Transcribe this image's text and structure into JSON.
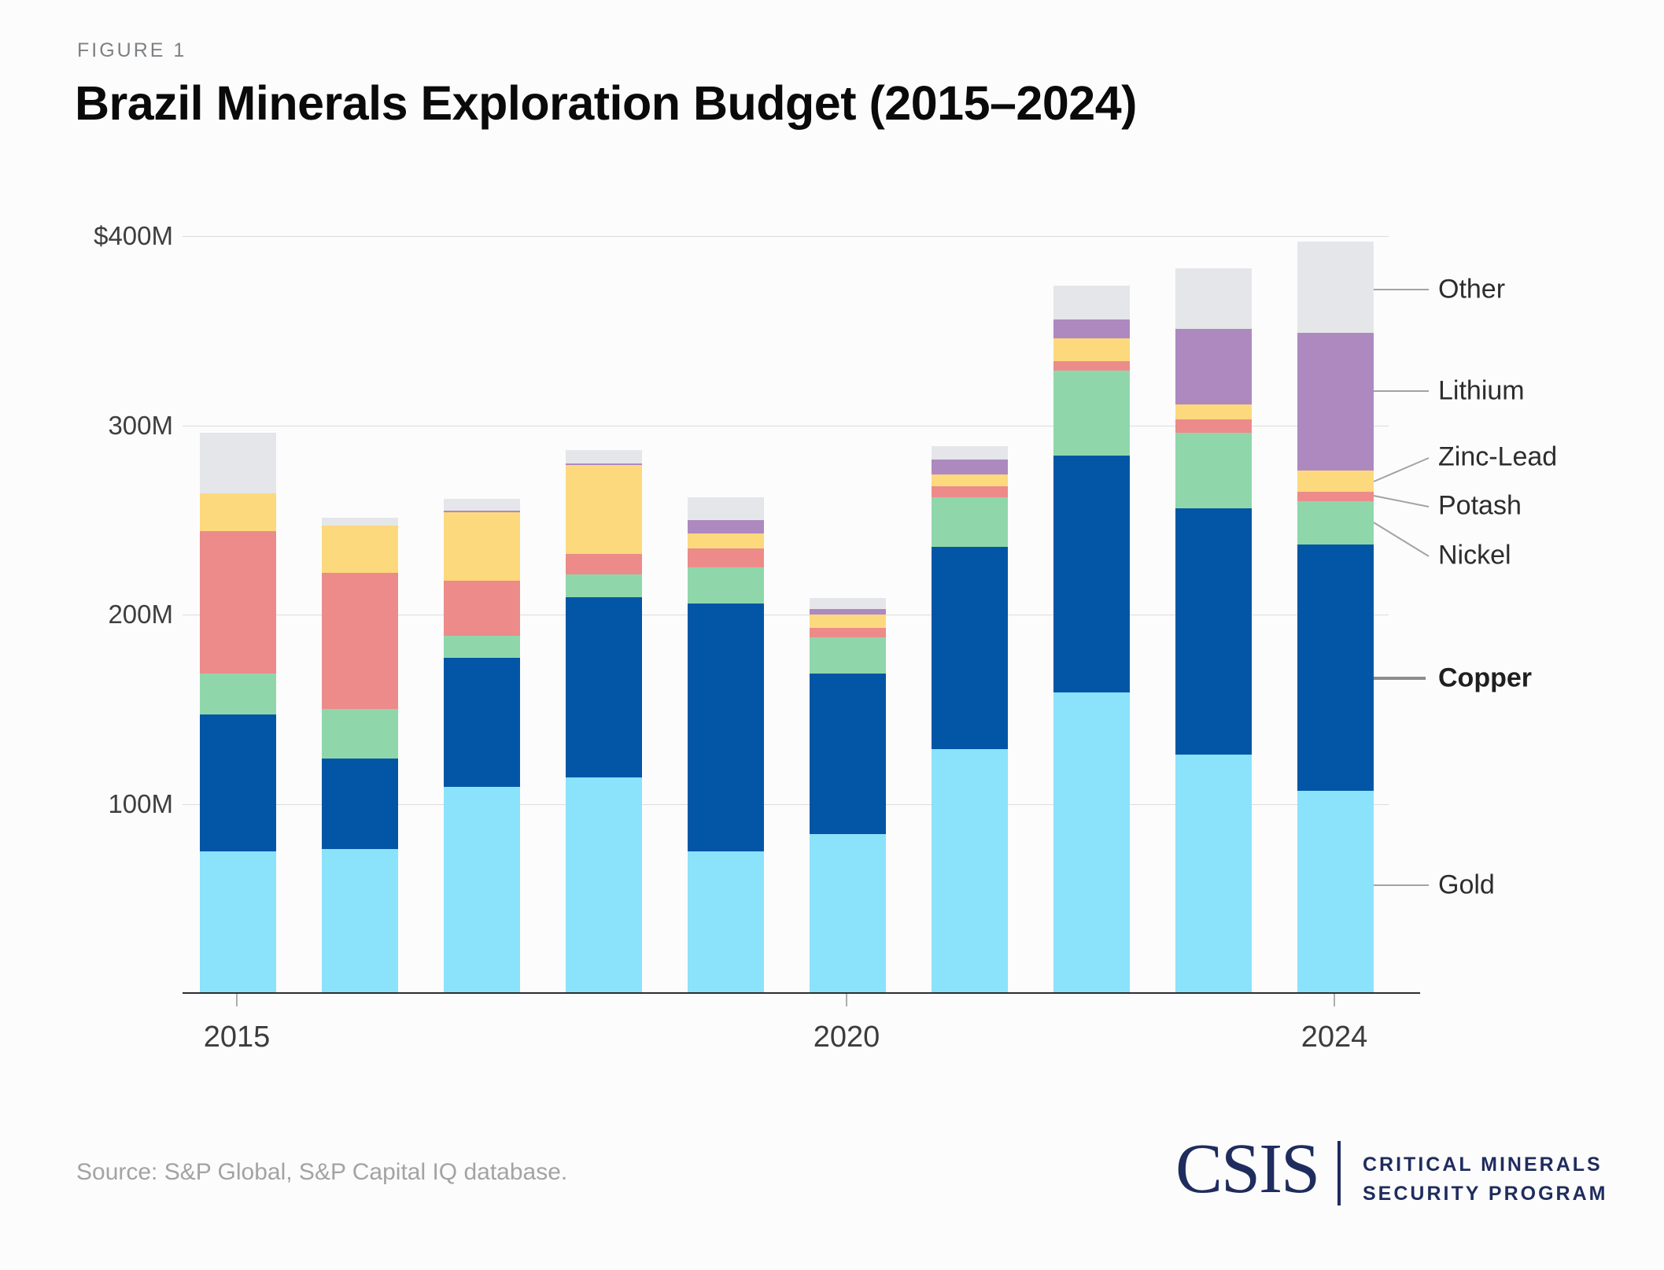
{
  "figure_label": "FIGURE 1",
  "title": "Brazil Minerals Exploration Budget (2015–2024)",
  "source": "Source: S&P Global, S&P Capital IQ database.",
  "logo": {
    "wordmark": "CSIS",
    "program_line1": "CRITICAL MINERALS",
    "program_line2": "SECURITY PROGRAM",
    "color": "#1f2c5e"
  },
  "y_axis": {
    "tick_labels": [
      "$400M",
      "300M",
      "200M",
      "100M"
    ],
    "tick_values": [
      400,
      300,
      200,
      100
    ]
  },
  "x_axis": {
    "tick_labels": [
      "2015",
      "2020",
      "2024"
    ]
  },
  "chart_data": {
    "type": "bar",
    "stacked": true,
    "title": "Brazil Minerals Exploration Budget (2015–2024)",
    "unit": "USD millions",
    "ylim": [
      0,
      400
    ],
    "grid": "horizontal",
    "legend_position": "right",
    "categories": [
      "2015",
      "2016",
      "2017",
      "2018",
      "2019",
      "2020",
      "2021",
      "2022",
      "2023",
      "2024"
    ],
    "series": [
      {
        "name": "Gold",
        "color": "#8be2fb",
        "values": [
          75,
          76,
          109,
          114,
          75,
          84,
          129,
          159,
          126,
          107
        ]
      },
      {
        "name": "Copper",
        "color": "#0356a6",
        "values": [
          72,
          48,
          68,
          95,
          131,
          85,
          107,
          125,
          130,
          130
        ]
      },
      {
        "name": "Nickel",
        "color": "#8fd7ab",
        "values": [
          22,
          26,
          12,
          12,
          19,
          19,
          26,
          45,
          40,
          23
        ]
      },
      {
        "name": "Potash",
        "color": "#ec8b8a",
        "values": [
          75,
          72,
          29,
          11,
          10,
          5,
          6,
          5,
          7,
          5
        ]
      },
      {
        "name": "Zinc-Lead",
        "color": "#fdd97e",
        "values": [
          20,
          25,
          36,
          47,
          8,
          7,
          6,
          12,
          8,
          11
        ]
      },
      {
        "name": "Lithium",
        "color": "#ad89c0",
        "values": [
          0,
          0,
          1,
          1,
          7,
          3,
          8,
          10,
          40,
          73
        ]
      },
      {
        "name": "Other",
        "color": "#e5e6e9",
        "values": [
          32,
          4,
          6,
          7,
          12,
          6,
          7,
          18,
          32,
          48
        ]
      }
    ],
    "totals": [
      296,
      251,
      261,
      287,
      262,
      209,
      289,
      374,
      383,
      397
    ]
  },
  "legend": {
    "labels": [
      "Other",
      "Lithium",
      "Zinc-Lead",
      "Potash",
      "Nickel",
      "Copper",
      "Gold"
    ],
    "bold_label": "Copper",
    "leader_line_color": "#a3a3a3",
    "leader_line_color_bold": "#8d8d8d"
  }
}
